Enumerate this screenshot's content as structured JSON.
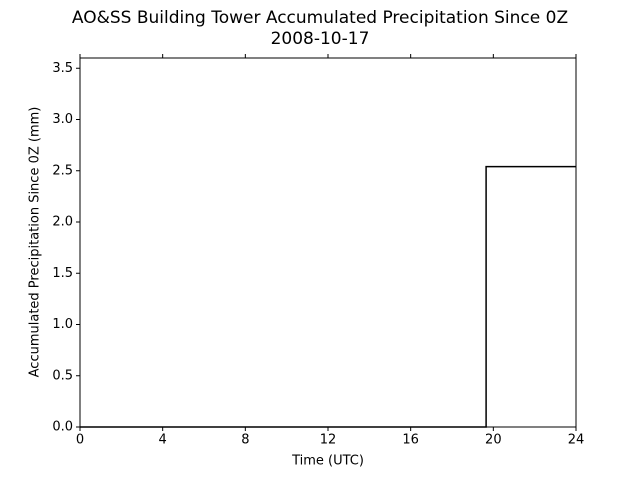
{
  "chart_data": {
    "type": "line",
    "title": "AO&SS Building Tower Accumulated Precipitation Since 0Z",
    "subtitle": "2008-10-17",
    "x_label": "Time (UTC)",
    "y_label": "Accumulated Precipitation Since 0Z (mm)",
    "x": [
      0,
      19.65,
      19.65,
      24
    ],
    "series": [
      {
        "color": "#000000",
        "values": [
          0,
          0,
          2.54,
          2.54
        ]
      }
    ],
    "xlim": [
      0,
      24
    ],
    "xticks": [
      0,
      4,
      8,
      12,
      16,
      20,
      24
    ],
    "ylim": [
      0,
      3.6
    ],
    "yticks": [
      {
        "value": 0,
        "label": "0.0"
      },
      {
        "value": 0.5,
        "label": "0.5"
      },
      {
        "value": 1,
        "label": "1.0"
      },
      {
        "value": 1.5,
        "label": "1.5"
      },
      {
        "value": 2,
        "label": "2.0"
      },
      {
        "value": 2.5,
        "label": "2.5"
      },
      {
        "value": 3,
        "label": "3.0"
      },
      {
        "value": 3.5,
        "label": "3.5"
      }
    ],
    "grid": false
  }
}
